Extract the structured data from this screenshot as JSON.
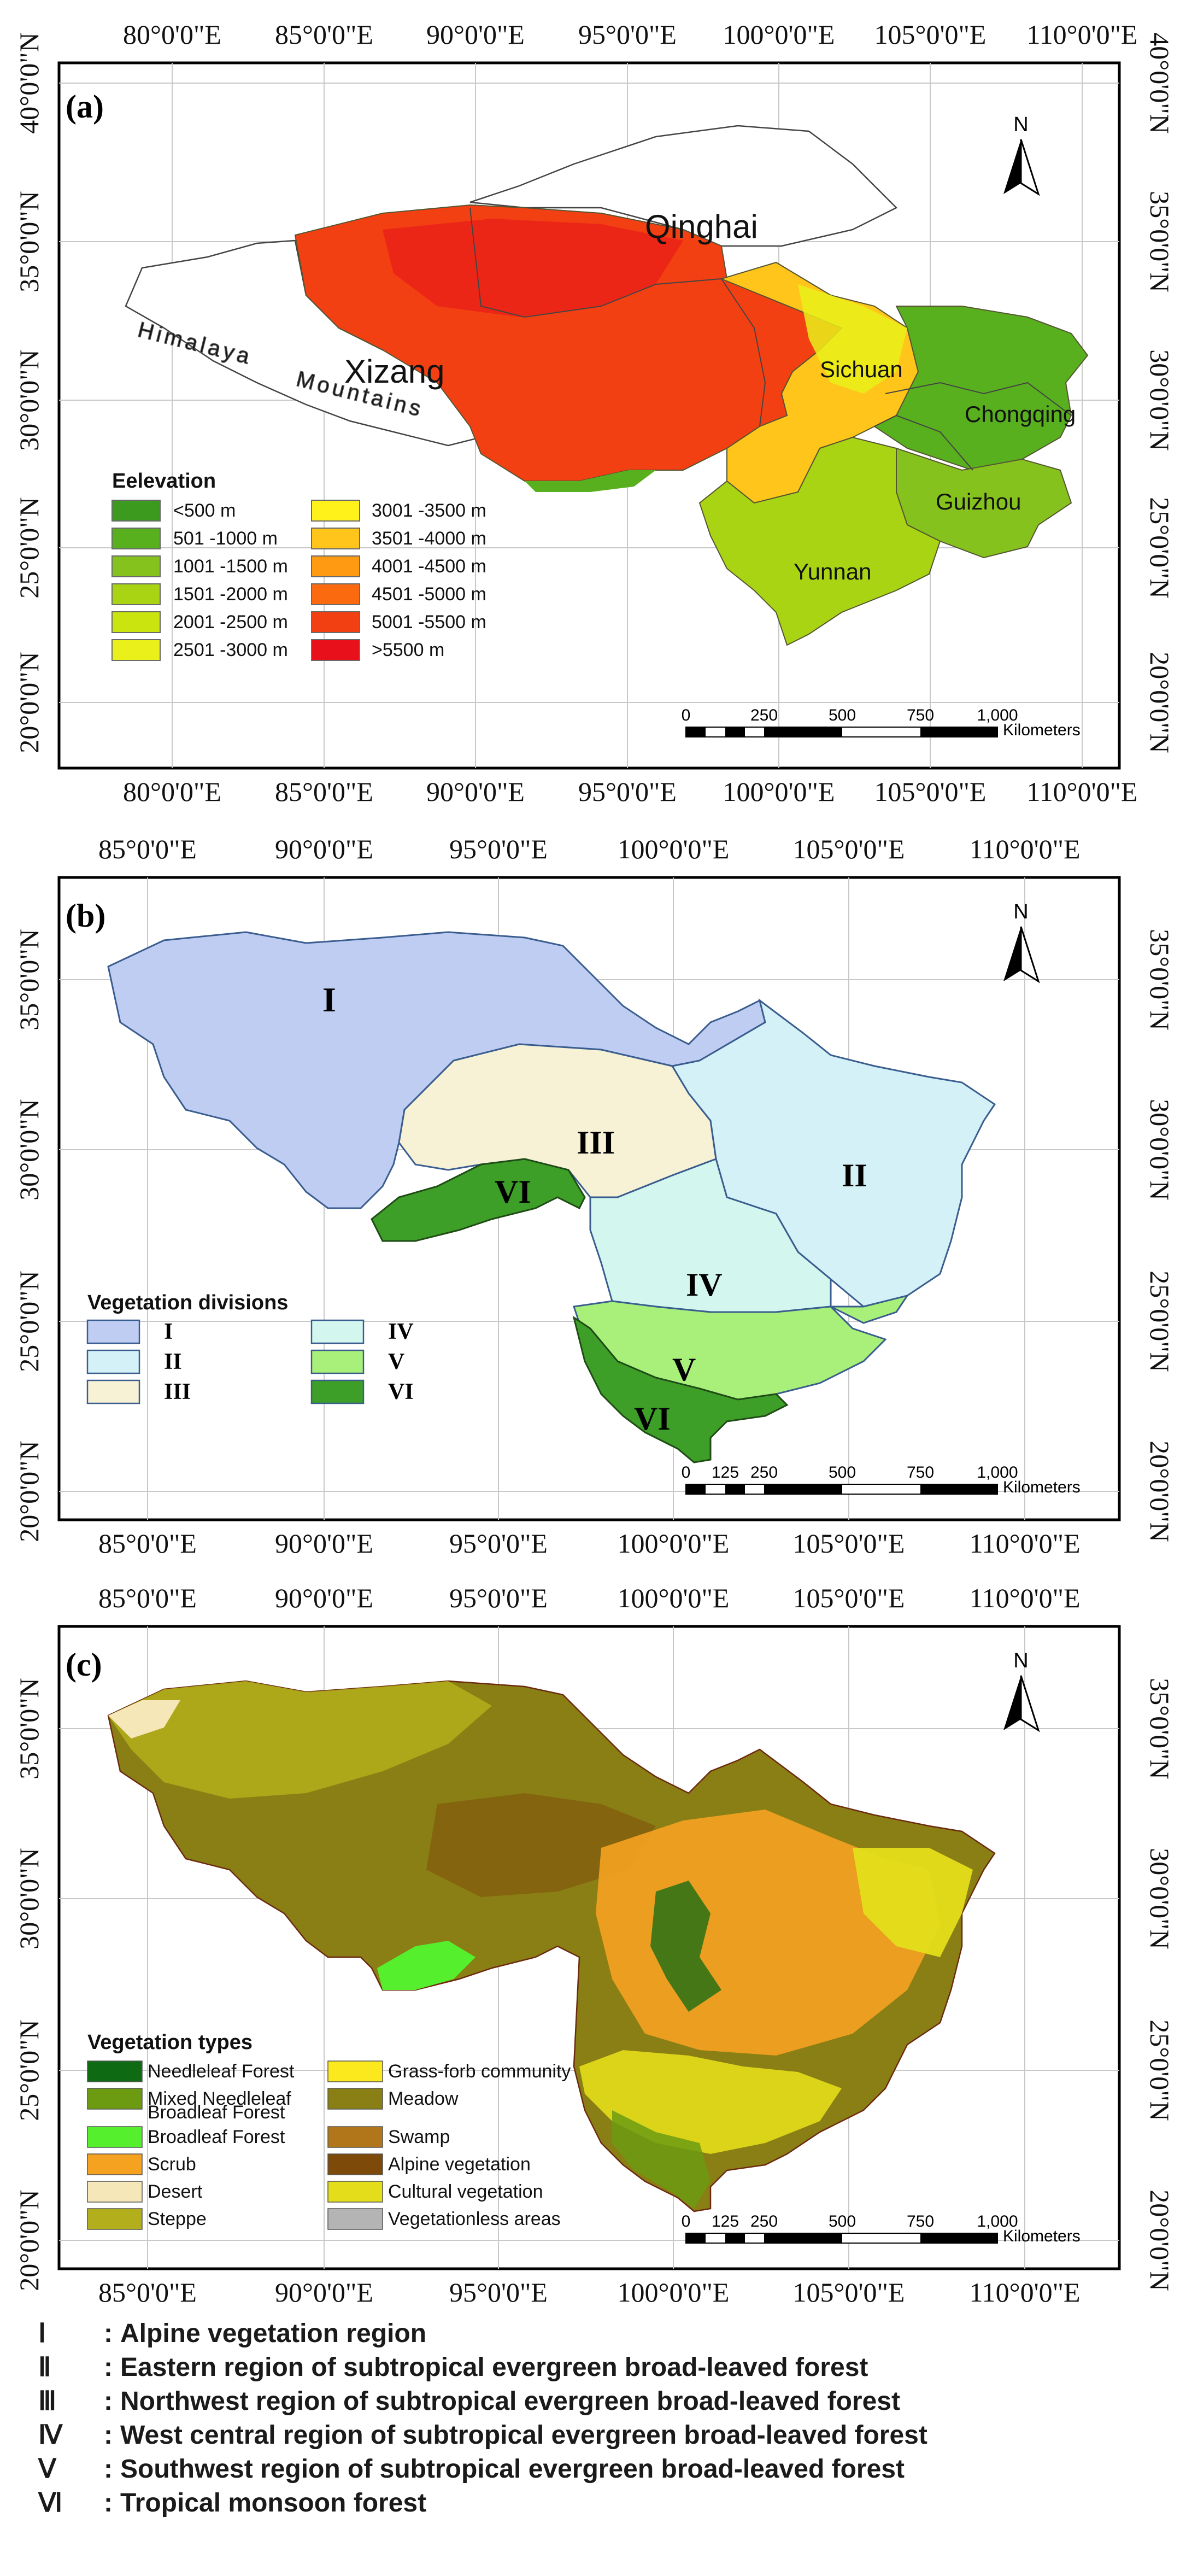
{
  "figure": {
    "lon_ticks_a": [
      "80°0'0\"E",
      "85°0'0\"E",
      "90°0'0\"E",
      "95°0'0\"E",
      "100°0'0\"E",
      "105°0'0\"E",
      "110°0'0\"E"
    ],
    "lat_ticks_a": [
      "40°0'0\"N",
      "35°0'0\"N",
      "30°0'0\"N",
      "25°0'0\"N",
      "20°0'0\"N"
    ],
    "lon_ticks_bc": [
      "85°0'0\"E",
      "90°0'0\"E",
      "95°0'0\"E",
      "100°0'0\"E",
      "105°0'0\"E",
      "110°0'0\"E"
    ],
    "lat_ticks_bc": [
      "35°0'0\"N",
      "30°0'0\"N",
      "25°0'0\"N",
      "20°0'0\"N"
    ],
    "north_label": "N",
    "scale_ticks_a": [
      "0",
      "250",
      "500",
      "750",
      "1,000"
    ],
    "scale_ticks_bc": [
      "0",
      "125",
      "250",
      "500",
      "750",
      "1,000"
    ],
    "scale_unit": "Kilometers"
  },
  "panel_a": {
    "label": "(a)",
    "places": {
      "qinghai": "Qinghai",
      "xizang": "Xizang",
      "sichuan": "Sichuan",
      "chongqing": "Chongqing",
      "guizhou": "Guizhou",
      "yunnan": "Yunnan",
      "himalaya": "Himalaya",
      "mountains": "Mountains"
    },
    "legend": {
      "title": "Eelevation",
      "items": [
        {
          "label": "<500 m",
          "color": "#3c9a1e"
        },
        {
          "label": "501 -1000 m",
          "color": "#58b01e"
        },
        {
          "label": "1001 -1500 m",
          "color": "#86c21e"
        },
        {
          "label": "1501 -2000 m",
          "color": "#a8d414"
        },
        {
          "label": "2001 -2500 m",
          "color": "#c9e40f"
        },
        {
          "label": "2501 -3000 m",
          "color": "#eaf01a"
        },
        {
          "label": "3001 -3500 m",
          "color": "#fff21a"
        },
        {
          "label": "3501 -4000 m",
          "color": "#ffc51a"
        },
        {
          "label": "4001 -4500 m",
          "color": "#ff9a12"
        },
        {
          "label": "4501 -5000 m",
          "color": "#fc6a10"
        },
        {
          "label": "5001 -5500 m",
          "color": "#f24012"
        },
        {
          "label": ">5500 m",
          "color": "#e8101a"
        }
      ]
    }
  },
  "panel_b": {
    "label": "(b)",
    "regions": {
      "I": "I",
      "II": "II",
      "III": "III",
      "IV": "IV",
      "V": "V",
      "VI_a": "VI",
      "VI_b": "VI"
    },
    "legend": {
      "title": "Vegetation divisions",
      "items": [
        {
          "label": "I",
          "color": "#c0cdf3"
        },
        {
          "label": "II",
          "color": "#d3f1f6"
        },
        {
          "label": "III",
          "color": "#f7f2d6"
        },
        {
          "label": "IV",
          "color": "#d3f6ee"
        },
        {
          "label": "V",
          "color": "#a8f07a"
        },
        {
          "label": "VI",
          "color": "#3d9e28"
        }
      ]
    }
  },
  "panel_c": {
    "label": "(c)",
    "legend": {
      "title": "Vegetation types",
      "items": [
        {
          "label": "Needleleaf Forest",
          "color": "#0f6a14"
        },
        {
          "label": "Mixed Needleleaf",
          "color": "#6c9b12"
        },
        {
          "label": "Broadleaf Forest",
          "color": "#55ef2e"
        },
        {
          "label": "Scrub",
          "color": "#f5a221"
        },
        {
          "label": "Desert",
          "color": "#f6e7b8"
        },
        {
          "label": "Steppe",
          "color": "#b3ae1b"
        },
        {
          "label": "Grass-forb community",
          "color": "#fbe91e"
        },
        {
          "label": "Meadow",
          "color": "#8a7f14"
        },
        {
          "label": "Swamp",
          "color": "#b2761a"
        },
        {
          "label": "Alpine vegetation",
          "color": "#7e4a0a"
        },
        {
          "label": "Cultural vegetation",
          "color": "#e4de1a"
        },
        {
          "label": "Vegetationless areas",
          "color": "#b4b4b4"
        }
      ],
      "mixed_second_line": "Broadleaf Forest"
    }
  },
  "footer": {
    "items": [
      {
        "num": "Ⅰ",
        "text": "Alpine vegetation region"
      },
      {
        "num": "Ⅱ",
        "text": "Eastern region of subtropical evergreen broad-leaved forest"
      },
      {
        "num": "Ⅲ",
        "text": "Northwest region of subtropical evergreen broad-leaved forest"
      },
      {
        "num": "Ⅳ",
        "text": "West central region of subtropical evergreen broad-leaved forest"
      },
      {
        "num": "Ⅴ",
        "text": "Southwest region of subtropical evergreen broad-leaved forest"
      },
      {
        "num": "Ⅵ",
        "text": "Tropical monsoon forest"
      }
    ]
  }
}
